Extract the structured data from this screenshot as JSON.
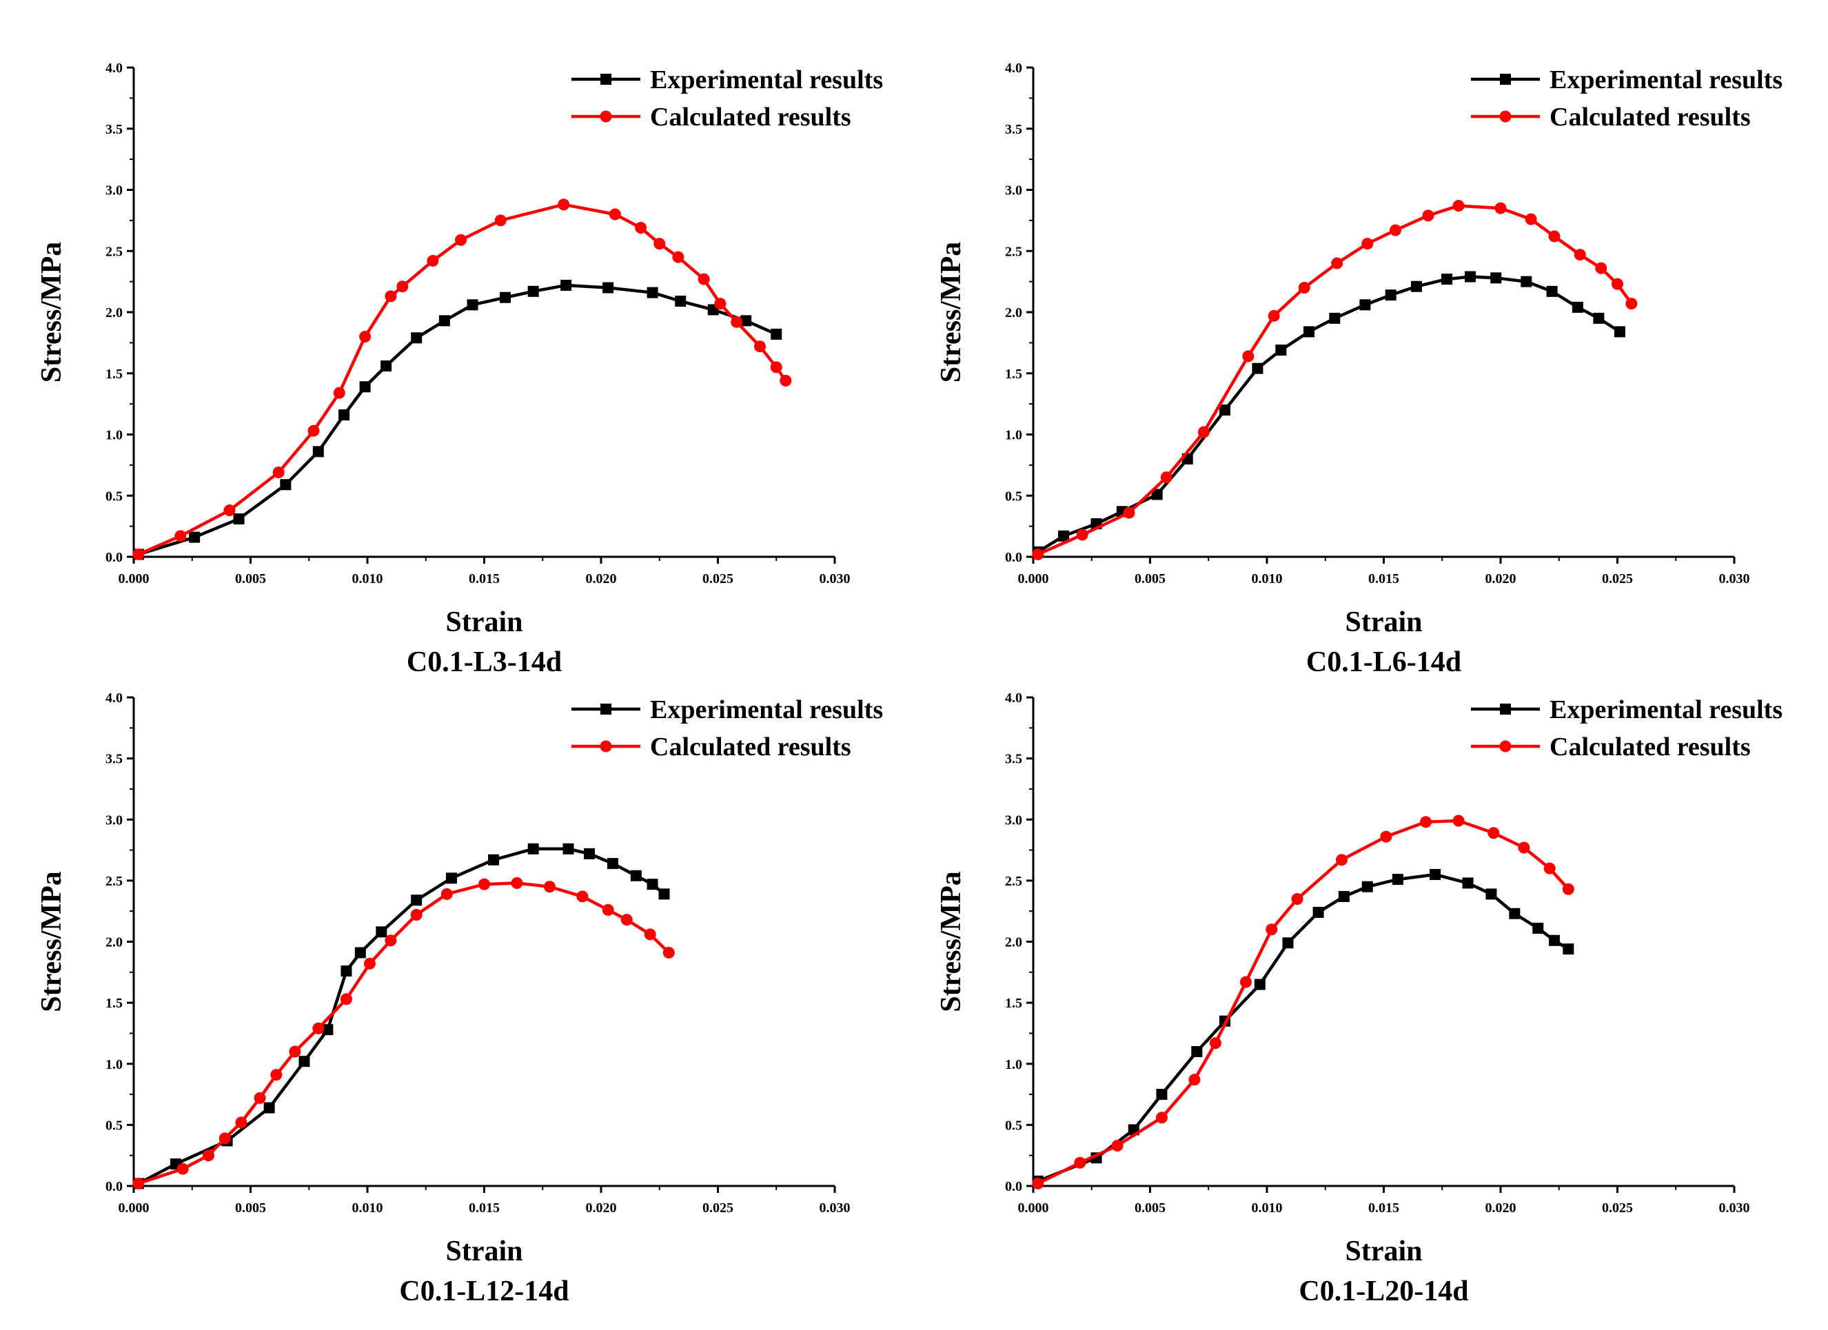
{
  "chart_data": [
    {
      "type": "line",
      "title": "C0.1-L3-14d",
      "xlabel": "Strain",
      "ylabel": "Stress/MPa",
      "xlim": [
        0,
        0.03
      ],
      "ylim": [
        0,
        4.0
      ],
      "xticks": [
        "0.000",
        "0.005",
        "0.010",
        "0.015",
        "0.020",
        "0.025",
        "0.030"
      ],
      "yticks": [
        "0.0",
        "0.5",
        "1.0",
        "1.5",
        "2.0",
        "2.5",
        "3.0",
        "3.5",
        "4.0"
      ],
      "legend_position": "top-right",
      "series": [
        {
          "name": "Experimental results",
          "color": "#000000",
          "marker": "square",
          "x": [
            0.0002,
            0.0026,
            0.0045,
            0.0065,
            0.0079,
            0.009,
            0.0099,
            0.0108,
            0.0121,
            0.0133,
            0.0145,
            0.0159,
            0.0171,
            0.0185,
            0.0203,
            0.0222,
            0.0234,
            0.0248,
            0.0262,
            0.0275
          ],
          "y": [
            0.02,
            0.16,
            0.31,
            0.59,
            0.86,
            1.16,
            1.39,
            1.56,
            1.79,
            1.93,
            2.06,
            2.12,
            2.17,
            2.22,
            2.2,
            2.16,
            2.09,
            2.02,
            1.93,
            1.82
          ]
        },
        {
          "name": "Calculated results",
          "color": "#ff0000",
          "marker": "circle",
          "x": [
            0.0002,
            0.002,
            0.0041,
            0.0062,
            0.0077,
            0.0088,
            0.0099,
            0.011,
            0.0115,
            0.0128,
            0.014,
            0.0157,
            0.0184,
            0.0206,
            0.0217,
            0.0225,
            0.0233,
            0.0244,
            0.0251,
            0.0258,
            0.0268,
            0.0275,
            0.0279
          ],
          "y": [
            0.02,
            0.17,
            0.38,
            0.69,
            1.03,
            1.34,
            1.8,
            2.13,
            2.21,
            2.42,
            2.59,
            2.75,
            2.88,
            2.8,
            2.69,
            2.56,
            2.45,
            2.27,
            2.07,
            1.92,
            1.72,
            1.55,
            1.44
          ]
        }
      ]
    },
    {
      "type": "line",
      "title": "C0.1-L6-14d",
      "xlabel": "Strain",
      "ylabel": "Stress/MPa",
      "xlim": [
        0,
        0.03
      ],
      "ylim": [
        0,
        4.0
      ],
      "xticks": [
        "0.000",
        "0.005",
        "0.010",
        "0.015",
        "0.020",
        "0.025",
        "0.030"
      ],
      "yticks": [
        "0.0",
        "0.5",
        "1.0",
        "1.5",
        "2.0",
        "2.5",
        "3.0",
        "3.5",
        "4.0"
      ],
      "legend_position": "top-right",
      "series": [
        {
          "name": "Experimental results",
          "color": "#000000",
          "marker": "square",
          "x": [
            0.0002,
            0.0013,
            0.0027,
            0.0038,
            0.0053,
            0.0066,
            0.0082,
            0.0096,
            0.0106,
            0.0118,
            0.0129,
            0.0142,
            0.0153,
            0.0164,
            0.0177,
            0.0187,
            0.0198,
            0.0211,
            0.0222,
            0.0233,
            0.0242,
            0.0251
          ],
          "y": [
            0.04,
            0.17,
            0.27,
            0.37,
            0.51,
            0.8,
            1.2,
            1.54,
            1.69,
            1.84,
            1.95,
            2.06,
            2.14,
            2.21,
            2.27,
            2.29,
            2.28,
            2.25,
            2.17,
            2.04,
            1.95,
            1.84
          ]
        },
        {
          "name": "Calculated results",
          "color": "#ff0000",
          "marker": "circle",
          "x": [
            0.0002,
            0.0021,
            0.0041,
            0.0057,
            0.0073,
            0.0092,
            0.0103,
            0.0116,
            0.013,
            0.0143,
            0.0155,
            0.0169,
            0.0182,
            0.02,
            0.0213,
            0.0223,
            0.0234,
            0.0243,
            0.025,
            0.0256
          ],
          "y": [
            0.02,
            0.18,
            0.36,
            0.65,
            1.02,
            1.64,
            1.97,
            2.2,
            2.4,
            2.56,
            2.67,
            2.79,
            2.87,
            2.85,
            2.76,
            2.62,
            2.47,
            2.36,
            2.23,
            2.07
          ]
        }
      ]
    },
    {
      "type": "line",
      "title": "C0.1-L12-14d",
      "xlabel": "Strain",
      "ylabel": "Stress/MPa",
      "xlim": [
        0,
        0.03
      ],
      "ylim": [
        0,
        4.0
      ],
      "xticks": [
        "0.000",
        "0.005",
        "0.010",
        "0.015",
        "0.020",
        "0.025",
        "0.030"
      ],
      "yticks": [
        "0.0",
        "0.5",
        "1.0",
        "1.5",
        "2.0",
        "2.5",
        "3.0",
        "3.5",
        "4.0"
      ],
      "legend_position": "top-right",
      "series": [
        {
          "name": "Experimental results",
          "color": "#000000",
          "marker": "square",
          "x": [
            0.0002,
            0.0018,
            0.004,
            0.0058,
            0.0073,
            0.0083,
            0.0091,
            0.0097,
            0.0106,
            0.0121,
            0.0136,
            0.0154,
            0.0171,
            0.0186,
            0.0195,
            0.0205,
            0.0215,
            0.0222,
            0.0227
          ],
          "y": [
            0.02,
            0.18,
            0.37,
            0.64,
            1.02,
            1.28,
            1.76,
            1.91,
            2.08,
            2.34,
            2.52,
            2.67,
            2.76,
            2.76,
            2.72,
            2.64,
            2.54,
            2.47,
            2.39
          ]
        },
        {
          "name": "Calculated results",
          "color": "#ff0000",
          "marker": "circle",
          "x": [
            0.0002,
            0.0021,
            0.0032,
            0.0039,
            0.0046,
            0.0054,
            0.0061,
            0.0069,
            0.0079,
            0.0091,
            0.0101,
            0.011,
            0.0121,
            0.0134,
            0.015,
            0.0164,
            0.0178,
            0.0192,
            0.0203,
            0.0211,
            0.0221,
            0.0229
          ],
          "y": [
            0.02,
            0.14,
            0.25,
            0.39,
            0.52,
            0.72,
            0.91,
            1.1,
            1.29,
            1.53,
            1.82,
            2.01,
            2.22,
            2.39,
            2.47,
            2.48,
            2.45,
            2.37,
            2.26,
            2.18,
            2.06,
            1.91
          ]
        }
      ]
    },
    {
      "type": "line",
      "title": "C0.1-L20-14d",
      "xlabel": "Strain",
      "ylabel": "Stress/MPa",
      "xlim": [
        0,
        0.03
      ],
      "ylim": [
        0,
        4.0
      ],
      "xticks": [
        "0.000",
        "0.005",
        "0.010",
        "0.015",
        "0.020",
        "0.025",
        "0.030"
      ],
      "yticks": [
        "0.0",
        "0.5",
        "1.0",
        "1.5",
        "2.0",
        "2.5",
        "3.0",
        "3.5",
        "4.0"
      ],
      "legend_position": "top-right",
      "series": [
        {
          "name": "Experimental results",
          "color": "#000000",
          "marker": "square",
          "x": [
            0.0002,
            0.0027,
            0.0043,
            0.0055,
            0.007,
            0.0082,
            0.0097,
            0.0109,
            0.0122,
            0.0133,
            0.0143,
            0.0156,
            0.0172,
            0.0186,
            0.0196,
            0.0206,
            0.0216,
            0.0223,
            0.0229
          ],
          "y": [
            0.04,
            0.23,
            0.46,
            0.75,
            1.1,
            1.35,
            1.65,
            1.99,
            2.24,
            2.37,
            2.45,
            2.51,
            2.55,
            2.48,
            2.39,
            2.23,
            2.11,
            2.01,
            1.94
          ]
        },
        {
          "name": "Calculated results",
          "color": "#ff0000",
          "marker": "circle",
          "x": [
            0.0002,
            0.002,
            0.0036,
            0.0055,
            0.0069,
            0.0078,
            0.0091,
            0.0102,
            0.0113,
            0.0132,
            0.0151,
            0.0168,
            0.0182,
            0.0197,
            0.021,
            0.0221,
            0.0229
          ],
          "y": [
            0.02,
            0.19,
            0.33,
            0.56,
            0.87,
            1.17,
            1.67,
            2.1,
            2.35,
            2.67,
            2.86,
            2.98,
            2.99,
            2.89,
            2.77,
            2.6,
            2.43
          ]
        }
      ]
    }
  ]
}
